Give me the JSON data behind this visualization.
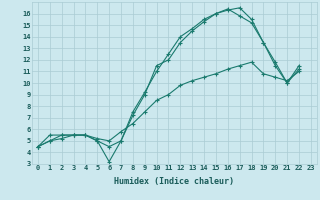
{
  "title": "",
  "xlabel": "Humidex (Indice chaleur)",
  "ylabel": "",
  "background_color": "#cce8ee",
  "line_color": "#1a7a6e",
  "xlim": [
    -0.5,
    23.5
  ],
  "ylim": [
    3,
    17
  ],
  "xticks": [
    0,
    1,
    2,
    3,
    4,
    5,
    6,
    7,
    8,
    9,
    10,
    11,
    12,
    13,
    14,
    15,
    16,
    17,
    18,
    19,
    20,
    21,
    22,
    23
  ],
  "yticks": [
    3,
    4,
    5,
    6,
    7,
    8,
    9,
    10,
    11,
    12,
    13,
    14,
    15,
    16
  ],
  "series": [
    {
      "x": [
        0,
        1,
        2,
        3,
        4,
        5,
        6,
        7,
        8,
        9,
        10,
        11,
        12,
        13,
        14,
        15,
        16,
        17,
        18,
        19,
        20,
        21,
        22
      ],
      "y": [
        4.5,
        5.5,
        5.5,
        5.5,
        5.5,
        5.0,
        3.2,
        5.0,
        7.5,
        9.2,
        11.0,
        12.5,
        14.0,
        14.7,
        15.5,
        16.0,
        16.3,
        16.5,
        15.5,
        13.5,
        11.8,
        10.0,
        11.5
      ]
    },
    {
      "x": [
        0,
        1,
        2,
        3,
        4,
        5,
        6,
        7,
        8,
        9,
        10,
        11,
        12,
        13,
        14,
        15,
        16,
        17,
        18,
        19,
        20,
        21,
        22
      ],
      "y": [
        4.5,
        5.0,
        5.5,
        5.5,
        5.5,
        5.0,
        4.5,
        5.0,
        7.2,
        9.0,
        11.5,
        12.0,
        13.5,
        14.5,
        15.3,
        16.0,
        16.4,
        15.8,
        15.2,
        13.5,
        11.5,
        10.0,
        11.2
      ]
    },
    {
      "x": [
        0,
        1,
        2,
        3,
        4,
        5,
        6,
        7,
        8,
        9,
        10,
        11,
        12,
        13,
        14,
        15,
        16,
        17,
        18,
        19,
        20,
        21,
        22
      ],
      "y": [
        4.5,
        5.0,
        5.2,
        5.5,
        5.5,
        5.2,
        5.0,
        5.8,
        6.5,
        7.5,
        8.5,
        9.0,
        9.8,
        10.2,
        10.5,
        10.8,
        11.2,
        11.5,
        11.8,
        10.8,
        10.5,
        10.2,
        11.0
      ]
    }
  ],
  "grid_color": "#aaccd4",
  "font_color": "#1a5c5a",
  "font_name": "monospace",
  "tick_fontsize": 5.0,
  "xlabel_fontsize": 6.0
}
